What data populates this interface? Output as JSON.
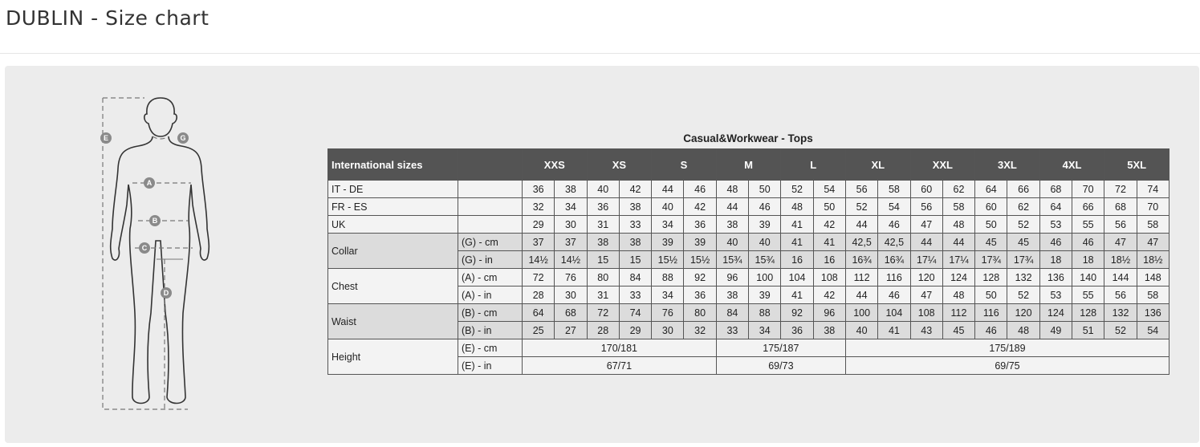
{
  "header": {
    "title": "DUBLIN - Size chart"
  },
  "figure": {
    "markers": [
      "E",
      "G",
      "A",
      "B",
      "C",
      "D"
    ]
  },
  "table": {
    "title": "Casual&Workwear - Tops",
    "header_label": "International sizes",
    "sizes": [
      "XXS",
      "XS",
      "S",
      "M",
      "L",
      "XL",
      "XXL",
      "3XL",
      "4XL",
      "5XL"
    ],
    "rows": [
      {
        "label": "IT - DE",
        "unit": "",
        "values": [
          "36",
          "38",
          "40",
          "42",
          "44",
          "46",
          "48",
          "50",
          "52",
          "54",
          "56",
          "58",
          "60",
          "62",
          "64",
          "66",
          "68",
          "70",
          "72",
          "74"
        ]
      },
      {
        "label": "FR - ES",
        "unit": "",
        "values": [
          "32",
          "34",
          "36",
          "38",
          "40",
          "42",
          "44",
          "46",
          "48",
          "50",
          "52",
          "54",
          "56",
          "58",
          "60",
          "62",
          "64",
          "66",
          "68",
          "70"
        ]
      },
      {
        "label": "UK",
        "unit": "",
        "values": [
          "29",
          "30",
          "31",
          "33",
          "34",
          "36",
          "38",
          "39",
          "41",
          "42",
          "44",
          "46",
          "47",
          "48",
          "50",
          "52",
          "53",
          "55",
          "56",
          "58"
        ]
      },
      {
        "label": "Collar",
        "unit": "(G) - cm",
        "shade": true,
        "values": [
          "37",
          "37",
          "38",
          "38",
          "39",
          "39",
          "40",
          "40",
          "41",
          "41",
          "42,5",
          "42,5",
          "44",
          "44",
          "45",
          "45",
          "46",
          "46",
          "47",
          "47"
        ]
      },
      {
        "label": "",
        "unit": "(G)  - in",
        "shade": true,
        "values": [
          "14½",
          "14½",
          "15",
          "15",
          "15½",
          "15½",
          "15¾",
          "15¾",
          "16",
          "16",
          "16¾",
          "16¾",
          "17¼",
          "17¼",
          "17¾",
          "17¾",
          "18",
          "18",
          "18½",
          "18½"
        ]
      },
      {
        "label": "Chest",
        "unit": "(A) - cm",
        "values": [
          "72",
          "76",
          "80",
          "84",
          "88",
          "92",
          "96",
          "100",
          "104",
          "108",
          "112",
          "116",
          "120",
          "124",
          "128",
          "132",
          "136",
          "140",
          "144",
          "148"
        ]
      },
      {
        "label": "",
        "unit": "(A) - in",
        "values": [
          "28",
          "30",
          "31",
          "33",
          "34",
          "36",
          "38",
          "39",
          "41",
          "42",
          "44",
          "46",
          "47",
          "48",
          "50",
          "52",
          "53",
          "55",
          "56",
          "58"
        ]
      },
      {
        "label": "Waist",
        "unit": "(B) - cm",
        "shade": true,
        "values": [
          "64",
          "68",
          "72",
          "74",
          "76",
          "80",
          "84",
          "88",
          "92",
          "96",
          "100",
          "104",
          "108",
          "112",
          "116",
          "120",
          "124",
          "128",
          "132",
          "136"
        ]
      },
      {
        "label": "",
        "unit": "(B) - in",
        "shade": true,
        "values": [
          "25",
          "27",
          "28",
          "29",
          "30",
          "32",
          "33",
          "34",
          "36",
          "38",
          "40",
          "41",
          "43",
          "45",
          "46",
          "48",
          "49",
          "51",
          "52",
          "54"
        ]
      }
    ],
    "height": {
      "label": "Height",
      "cm": {
        "unit": "(E) - cm",
        "groups": [
          {
            "value": "170/181",
            "span": 6
          },
          {
            "value": "175/187",
            "span": 4
          },
          {
            "value": "175/189",
            "span": 10
          }
        ]
      },
      "in": {
        "unit": "(E) - in",
        "groups": [
          {
            "value": "67/71",
            "span": 6
          },
          {
            "value": "69/73",
            "span": 4
          },
          {
            "value": "69/75",
            "span": 10
          }
        ]
      }
    }
  }
}
